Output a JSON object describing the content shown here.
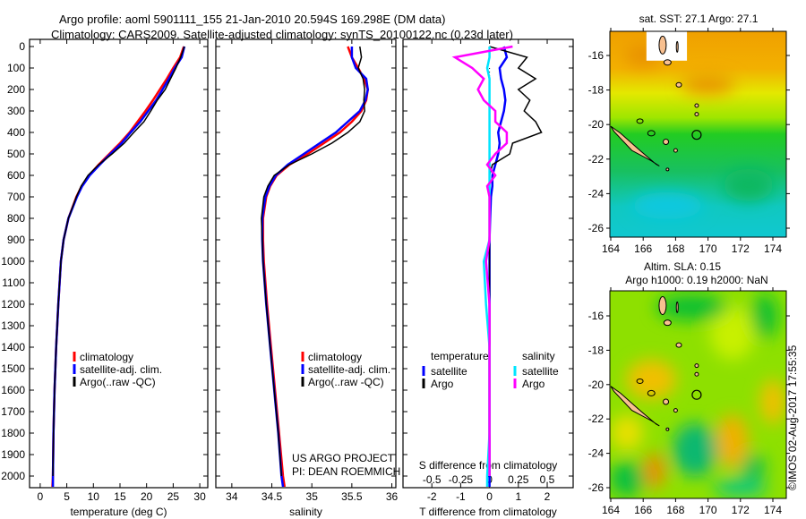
{
  "title_line1": "Argo profile: aoml 5901111_155 21-Jan-2010 20.594S 169.298E (DM data)",
  "title_line2": "Climatology: CARS2009. Satellite-adjusted climatology: synTS_20100122.nc (0.23d later)",
  "credit": [
    "US ARGO PROJECT",
    "PI: DEAN ROEMMICH"
  ],
  "copyright": "©IMOS 02-Aug-2017 17:55:35",
  "colors": {
    "climatology": "#ff0000",
    "satellite": "#0000ff",
    "argo": "#000000",
    "s_sat": "#00e5ff",
    "s_argo": "#ff00ff"
  },
  "chart_data": [
    {
      "type": "line",
      "xlabel": "temperature (deg C)",
      "ylabel": "",
      "xlim": [
        -2,
        31.5
      ],
      "ylim": [
        2050,
        0
      ],
      "xticks": [
        "0",
        "5",
        "10",
        "15",
        "20",
        "25",
        "30"
      ],
      "xtick_values": [
        0,
        5,
        10,
        15,
        20,
        25,
        30
      ],
      "yticks": [
        "0",
        "100",
        "200",
        "300",
        "400",
        "500",
        "600",
        "700",
        "800",
        "900",
        "1000",
        "1100",
        "1200",
        "1300",
        "1400",
        "1500",
        "1600",
        "1700",
        "1800",
        "1900",
        "2000"
      ],
      "depth": [
        0,
        50,
        100,
        150,
        200,
        250,
        300,
        350,
        400,
        450,
        500,
        550,
        600,
        650,
        700,
        800,
        900,
        1000,
        1200,
        1400,
        1600,
        1800,
        2000,
        2050
      ],
      "legend": [
        "climatology",
        "satellite-adj. clim.",
        "Argo(..raw -QC)"
      ],
      "series": [
        {
          "name": "climatology",
          "color": "#ff0000",
          "values": [
            27.0,
            26.3,
            25.0,
            23.8,
            22.5,
            21.2,
            19.8,
            18.3,
            16.8,
            15.0,
            13.0,
            11.0,
            9.2,
            7.8,
            6.8,
            5.3,
            4.4,
            3.9,
            3.4,
            3.0,
            2.7,
            2.5,
            2.4,
            2.3
          ]
        },
        {
          "name": "satellite-adj. clim.",
          "color": "#0000ff",
          "values": [
            27.1,
            26.6,
            25.3,
            24.2,
            23.0,
            21.8,
            20.3,
            18.8,
            17.0,
            15.3,
            13.2,
            11.2,
            9.3,
            7.9,
            6.9,
            5.3,
            4.4,
            3.9,
            3.4,
            3.0,
            2.7,
            2.5,
            2.4,
            2.4
          ]
        },
        {
          "name": "Argo(..raw -QC)",
          "color": "#000000",
          "values": [
            27.1,
            26.4,
            25.5,
            24.5,
            23.5,
            22.0,
            20.8,
            19.5,
            17.6,
            15.8,
            13.5,
            11.0,
            9.0,
            7.7,
            6.8,
            5.3,
            4.4,
            3.9,
            3.4,
            3.0,
            2.7,
            2.5,
            2.4,
            null
          ]
        }
      ]
    },
    {
      "type": "line",
      "xlabel": "salinity",
      "xlim": [
        33.8,
        36.05
      ],
      "ylim": [
        2050,
        0
      ],
      "xticks": [
        "34",
        "34.5",
        "35",
        "35.5",
        "36"
      ],
      "xtick_values": [
        34,
        34.5,
        35,
        35.5,
        36
      ],
      "depth": [
        0,
        50,
        100,
        150,
        200,
        250,
        300,
        350,
        400,
        450,
        500,
        550,
        600,
        650,
        700,
        800,
        900,
        1000,
        1200,
        1400,
        1600,
        1800,
        2000,
        2050
      ],
      "legend": [
        "climatology",
        "satellite-adj. clim.",
        "Argo(..raw -QC)"
      ],
      "series": [
        {
          "name": "climatology",
          "color": "#ff0000",
          "values": [
            35.45,
            35.5,
            35.58,
            35.65,
            35.7,
            35.68,
            35.62,
            35.5,
            35.35,
            35.15,
            34.95,
            34.72,
            34.56,
            34.48,
            34.43,
            34.39,
            34.39,
            34.4,
            34.44,
            34.49,
            34.54,
            34.59,
            34.64,
            34.66
          ]
        },
        {
          "name": "satellite-adj. clim.",
          "color": "#0000ff",
          "values": [
            35.5,
            35.5,
            35.55,
            35.68,
            35.7,
            35.67,
            35.6,
            35.45,
            35.3,
            35.1,
            34.9,
            34.7,
            34.55,
            34.47,
            34.42,
            34.38,
            34.38,
            34.39,
            34.43,
            34.48,
            34.53,
            34.58,
            34.62,
            34.64
          ]
        },
        {
          "name": "Argo(..raw -QC)",
          "color": "#000000",
          "values": [
            35.6,
            35.62,
            35.58,
            35.64,
            35.66,
            35.65,
            35.66,
            35.6,
            35.45,
            35.25,
            35.0,
            34.72,
            34.53,
            34.45,
            34.4,
            34.37,
            34.38,
            34.39,
            34.43,
            34.48,
            34.53,
            34.58,
            34.62,
            null
          ]
        }
      ]
    },
    {
      "type": "line",
      "xlabel": "T difference from climatology",
      "x2label": "S difference from climatology",
      "xlim": [
        -3,
        2.9
      ],
      "x2lim": [
        -0.75,
        0.725
      ],
      "ylim": [
        2050,
        0
      ],
      "xticks": [
        "-2",
        "-1",
        "0",
        "1",
        "2"
      ],
      "xtick_values": [
        -2,
        -1,
        0,
        1,
        2
      ],
      "x2ticks": [
        "-0.5",
        "-0.25",
        "0",
        "0.25",
        "0.5"
      ],
      "x2tick_values": [
        -0.5,
        -0.25,
        0,
        0.25,
        0.5
      ],
      "depth": [
        0,
        50,
        100,
        150,
        200,
        250,
        300,
        350,
        400,
        450,
        500,
        550,
        600,
        650,
        700,
        800,
        900,
        1000,
        1200,
        1400,
        1600,
        1800,
        2000,
        2050
      ],
      "legend_t": {
        "title": "temperature",
        "items": [
          "satellite",
          "Argo"
        ]
      },
      "legend_s": {
        "title": "salinity",
        "items": [
          "satellite",
          "Argo"
        ]
      },
      "series": [
        {
          "name": "T satellite",
          "axis": "T",
          "color": "#0000ff",
          "values": [
            0.5,
            0.6,
            0.35,
            0.4,
            0.5,
            0.55,
            0.5,
            0.4,
            0.3,
            0.35,
            0.3,
            0.2,
            0.1,
            0.1,
            0.05,
            0.02,
            0,
            0,
            0,
            0,
            0,
            0,
            0,
            0
          ]
        },
        {
          "name": "T Argo",
          "axis": "T",
          "color": "#000000",
          "values": [
            0,
            1.3,
            1.0,
            1.6,
            1.0,
            1.4,
            1.2,
            1.6,
            1.8,
            0.8,
            0.7,
            0.1,
            0,
            0,
            0,
            0,
            0,
            0,
            0,
            0,
            0,
            0,
            0,
            null
          ]
        },
        {
          "name": "S satellite",
          "axis": "S",
          "color": "#00e5ff",
          "values": [
            0,
            0,
            -0.02,
            0,
            0,
            0,
            0,
            0,
            0,
            0,
            0,
            0,
            0,
            0,
            0,
            0,
            0,
            -0.05,
            -0.03,
            0,
            0,
            0,
            -0.02,
            -0.02
          ]
        },
        {
          "name": "S Argo",
          "axis": "S",
          "color": "#ff00ff",
          "values": [
            0.2,
            -0.3,
            -0.15,
            -0.05,
            -0.1,
            -0.05,
            0.05,
            0.05,
            0.15,
            0.15,
            0.05,
            -0.02,
            0.05,
            -0.02,
            0,
            0,
            0,
            -0.03,
            0,
            0,
            0,
            0,
            0,
            null
          ]
        }
      ]
    }
  ],
  "maps": [
    {
      "title": "sat. SST: 27.1  Argo: 27.1",
      "xticks": [
        "164",
        "166",
        "168",
        "170",
        "172",
        "174"
      ],
      "yticks": [
        "-16",
        "-18",
        "-20",
        "-22",
        "-24",
        "-26"
      ]
    },
    {
      "title_line1": "Altim. SLA: 0.15",
      "title_line2": "Argo h1000: 0.19 h2000: NaN",
      "xticks": [
        "164",
        "166",
        "168",
        "170",
        "172",
        "174"
      ],
      "yticks": [
        "-16",
        "-18",
        "-20",
        "-22",
        "-24",
        "-26"
      ]
    }
  ],
  "argo_position": {
    "lon": 169.298,
    "lat": -20.594
  }
}
